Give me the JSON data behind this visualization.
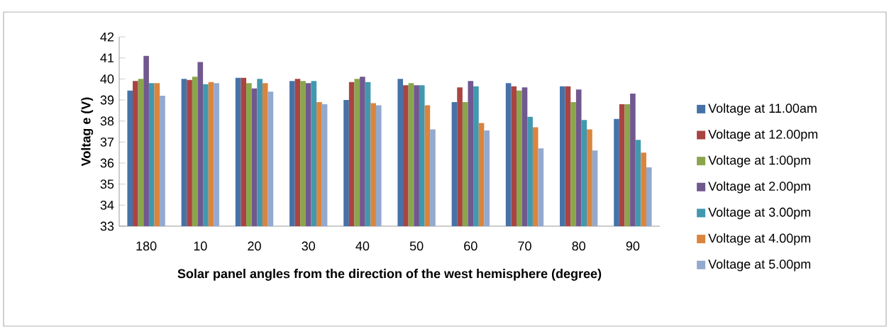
{
  "chart_data": {
    "type": "bar",
    "xlabel": "Solar panel angles  from the direction of the west  hemisphere (degree)",
    "ylabel": "Voltag e (V)",
    "categories": [
      "180",
      "10",
      "20",
      "30",
      "40",
      "50",
      "60",
      "70",
      "80",
      "90"
    ],
    "ylim": [
      33,
      42
    ],
    "yticks": [
      33,
      34,
      35,
      36,
      37,
      38,
      39,
      40,
      41,
      42
    ],
    "grid": false,
    "legend": "right",
    "series": [
      {
        "name": "Voltage at 11.00am",
        "color": "#4672a8",
        "values": [
          39.45,
          40.0,
          40.05,
          39.9,
          39.0,
          40.0,
          38.9,
          39.8,
          39.65,
          38.1
        ]
      },
      {
        "name": "Voltage  at 12.00pm",
        "color": "#a94442",
        "values": [
          39.9,
          39.95,
          40.05,
          40.0,
          39.85,
          39.7,
          39.6,
          39.65,
          39.65,
          38.8
        ]
      },
      {
        "name": "Voltage  at 1:00pm",
        "color": "#8aa64c",
        "values": [
          40.0,
          40.1,
          39.8,
          39.9,
          40.0,
          39.8,
          38.9,
          39.45,
          38.9,
          38.8
        ]
      },
      {
        "name": "Voltage  at 2.00pm",
        "color": "#71588f",
        "values": [
          41.1,
          40.8,
          39.55,
          39.8,
          40.1,
          39.7,
          39.9,
          39.6,
          39.5,
          39.3
        ]
      },
      {
        "name": "Voltage  at 3.00pm",
        "color": "#4198af",
        "values": [
          39.8,
          39.75,
          40.0,
          39.9,
          39.85,
          39.7,
          39.65,
          38.2,
          38.05,
          37.1
        ]
      },
      {
        "name": "Voltage  at 4.00pm",
        "color": "#db843d",
        "values": [
          39.8,
          39.85,
          39.8,
          38.9,
          38.85,
          38.75,
          37.9,
          37.7,
          37.6,
          36.5
        ]
      },
      {
        "name": "Voltage  at 5.00pm",
        "color": "#93a9cf",
        "values": [
          39.2,
          39.8,
          39.4,
          38.8,
          38.75,
          37.6,
          37.55,
          36.7,
          36.6,
          35.8
        ]
      }
    ]
  }
}
